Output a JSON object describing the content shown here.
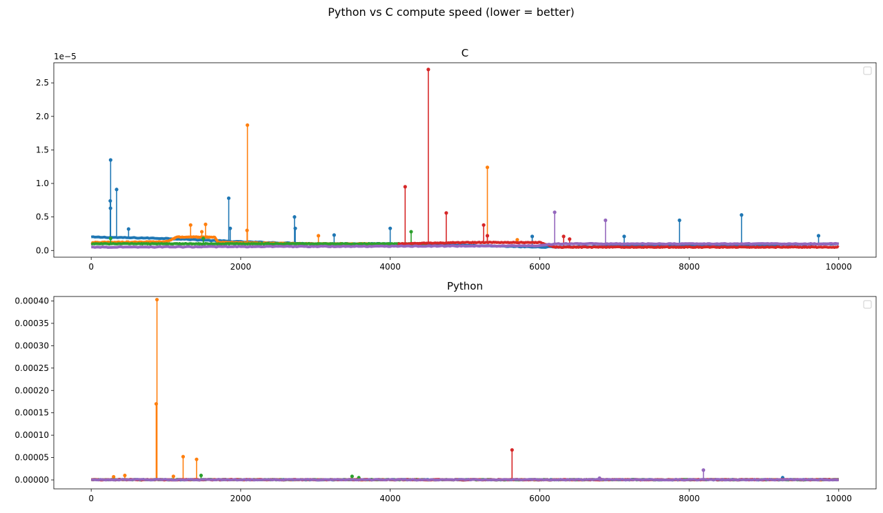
{
  "figure": {
    "suptitle": "Python vs C compute speed (lower = better)"
  },
  "chart_data": [
    {
      "type": "line",
      "title": "C",
      "xlabel": "",
      "ylabel": "",
      "y_offset_label": "1e−5",
      "xlim": [
        -500,
        10500
      ],
      "ylim": [
        -1e-06,
        2.8e-05
      ],
      "x_ticks": [
        0,
        2000,
        4000,
        6000,
        8000,
        10000
      ],
      "x_tick_labels": [
        "0",
        "2000",
        "4000",
        "6000",
        "8000",
        "10000"
      ],
      "y_ticks": [
        0,
        5e-06,
        1e-05,
        1.5e-05,
        2e-05,
        2.5e-05
      ],
      "y_tick_labels": [
        "0.0",
        "0.5",
        "1.0",
        "1.5",
        "2.0",
        "2.5"
      ],
      "grid": false,
      "legend": "upper right (empty)",
      "marker": "circle",
      "series": [
        {
          "color": "#1f77b4",
          "baseline": [
            [
              0,
              2e-06
            ],
            [
              1000,
              1.8e-06
            ],
            [
              2000,
              1.3e-06
            ],
            [
              3000,
              1e-06
            ],
            [
              4000,
              1e-06
            ],
            [
              6000,
              5e-07
            ],
            [
              10000,
              1e-06
            ]
          ],
          "spikes": [
            [
              260,
              1.35e-05
            ],
            [
              255,
              7.4e-06
            ],
            [
              258,
              6.3e-06
            ],
            [
              340,
              9.1e-06
            ],
            [
              500,
              3.2e-06
            ],
            [
              1840,
              7.8e-06
            ],
            [
              1860,
              3.3e-06
            ],
            [
              2720,
              5e-06
            ],
            [
              2730,
              3.3e-06
            ],
            [
              3250,
              2.3e-06
            ],
            [
              4000,
              3.3e-06
            ],
            [
              5900,
              2.1e-06
            ],
            [
              7130,
              2.1e-06
            ],
            [
              7870,
              4.5e-06
            ],
            [
              8700,
              5.3e-06
            ],
            [
              9730,
              2.2e-06
            ]
          ]
        },
        {
          "color": "#ff7f0e",
          "baseline": [
            [
              0,
              1.2e-06
            ],
            [
              1000,
              1.3e-06
            ],
            [
              1150,
              2e-06
            ],
            [
              1650,
              2e-06
            ],
            [
              1700,
              1.2e-06
            ],
            [
              3000,
              1e-06
            ],
            [
              3800,
              1e-06
            ]
          ],
          "spikes": [
            [
              2090,
              1.87e-05
            ],
            [
              2085,
              3e-06
            ],
            [
              1330,
              3.8e-06
            ],
            [
              1530,
              3.9e-06
            ],
            [
              1480,
              2.8e-06
            ],
            [
              3040,
              2.2e-06
            ],
            [
              5300,
              1.24e-05
            ],
            [
              5700,
              1.6e-06
            ]
          ]
        },
        {
          "color": "#2ca02c",
          "baseline": [
            [
              0,
              1e-06
            ],
            [
              1500,
              1e-06
            ],
            [
              4500,
              1e-06
            ]
          ],
          "spikes": [
            [
              4280,
              2.8e-06
            ],
            [
              1500,
              1.8e-06
            ],
            [
              260,
              1.8e-06
            ]
          ]
        },
        {
          "color": "#d62728",
          "baseline": [
            [
              4100,
              1e-06
            ],
            [
              5000,
              1.2e-06
            ],
            [
              6000,
              1.2e-06
            ],
            [
              6200,
              5e-07
            ],
            [
              10000,
              5e-07
            ]
          ],
          "spikes": [
            [
              4510,
              2.7e-05
            ],
            [
              4200,
              9.5e-06
            ],
            [
              4750,
              5.6e-06
            ],
            [
              5250,
              3.8e-06
            ],
            [
              5300,
              2.2e-06
            ],
            [
              6320,
              2.1e-06
            ],
            [
              6400,
              1.7e-06
            ]
          ]
        },
        {
          "color": "#9467bd",
          "baseline": [
            [
              0,
              5e-07
            ],
            [
              3000,
              6e-07
            ],
            [
              6000,
              7e-07
            ],
            [
              6200,
              1e-06
            ],
            [
              10000,
              1e-06
            ]
          ],
          "spikes": [
            [
              6200,
              5.7e-06
            ],
            [
              6880,
              4.5e-06
            ]
          ]
        }
      ]
    },
    {
      "type": "line",
      "title": "Python",
      "xlabel": "",
      "ylabel": "",
      "xlim": [
        -500,
        10500
      ],
      "ylim": [
        -2e-05,
        0.00041
      ],
      "x_ticks": [
        0,
        2000,
        4000,
        6000,
        8000,
        10000
      ],
      "x_tick_labels": [
        "0",
        "2000",
        "4000",
        "6000",
        "8000",
        "10000"
      ],
      "y_ticks": [
        0,
        5e-05,
        0.0001,
        0.00015,
        0.0002,
        0.00025,
        0.0003,
        0.00035,
        0.0004
      ],
      "y_tick_labels": [
        "0.00000",
        "0.00005",
        "0.00010",
        "0.00015",
        "0.00020",
        "0.00025",
        "0.00030",
        "0.00035",
        "0.00040"
      ],
      "grid": false,
      "legend": "upper right (empty)",
      "marker": "circle",
      "series": [
        {
          "color": "#1f77b4",
          "baseline": [
            [
              0,
              5e-07
            ],
            [
              10000,
              5e-07
            ]
          ],
          "spikes": [
            [
              9250,
              5e-06
            ]
          ]
        },
        {
          "color": "#ff7f0e",
          "baseline": [
            [
              0,
              5e-07
            ],
            [
              10000,
              5e-07
            ]
          ],
          "spikes": [
            [
              880,
              0.000403
            ],
            [
              870,
              0.00017
            ],
            [
              1230,
              5.2e-05
            ],
            [
              1410,
              4.6e-05
            ],
            [
              450,
              1e-05
            ],
            [
              300,
              7e-06
            ],
            [
              1100,
              8e-06
            ]
          ]
        },
        {
          "color": "#2ca02c",
          "baseline": [
            [
              0,
              5e-07
            ],
            [
              10000,
              5e-07
            ]
          ],
          "spikes": [
            [
              1470,
              1e-05
            ],
            [
              3490,
              8e-06
            ],
            [
              3580,
              5e-06
            ]
          ]
        },
        {
          "color": "#d62728",
          "baseline": [
            [
              0,
              5e-07
            ],
            [
              10000,
              5e-07
            ]
          ],
          "spikes": [
            [
              5630,
              6.7e-05
            ]
          ]
        },
        {
          "color": "#9467bd",
          "baseline": [
            [
              0,
              5e-07
            ],
            [
              10000,
              5e-07
            ]
          ],
          "spikes": [
            [
              8190,
              2.2e-05
            ],
            [
              6800,
              4e-06
            ]
          ]
        }
      ]
    }
  ]
}
